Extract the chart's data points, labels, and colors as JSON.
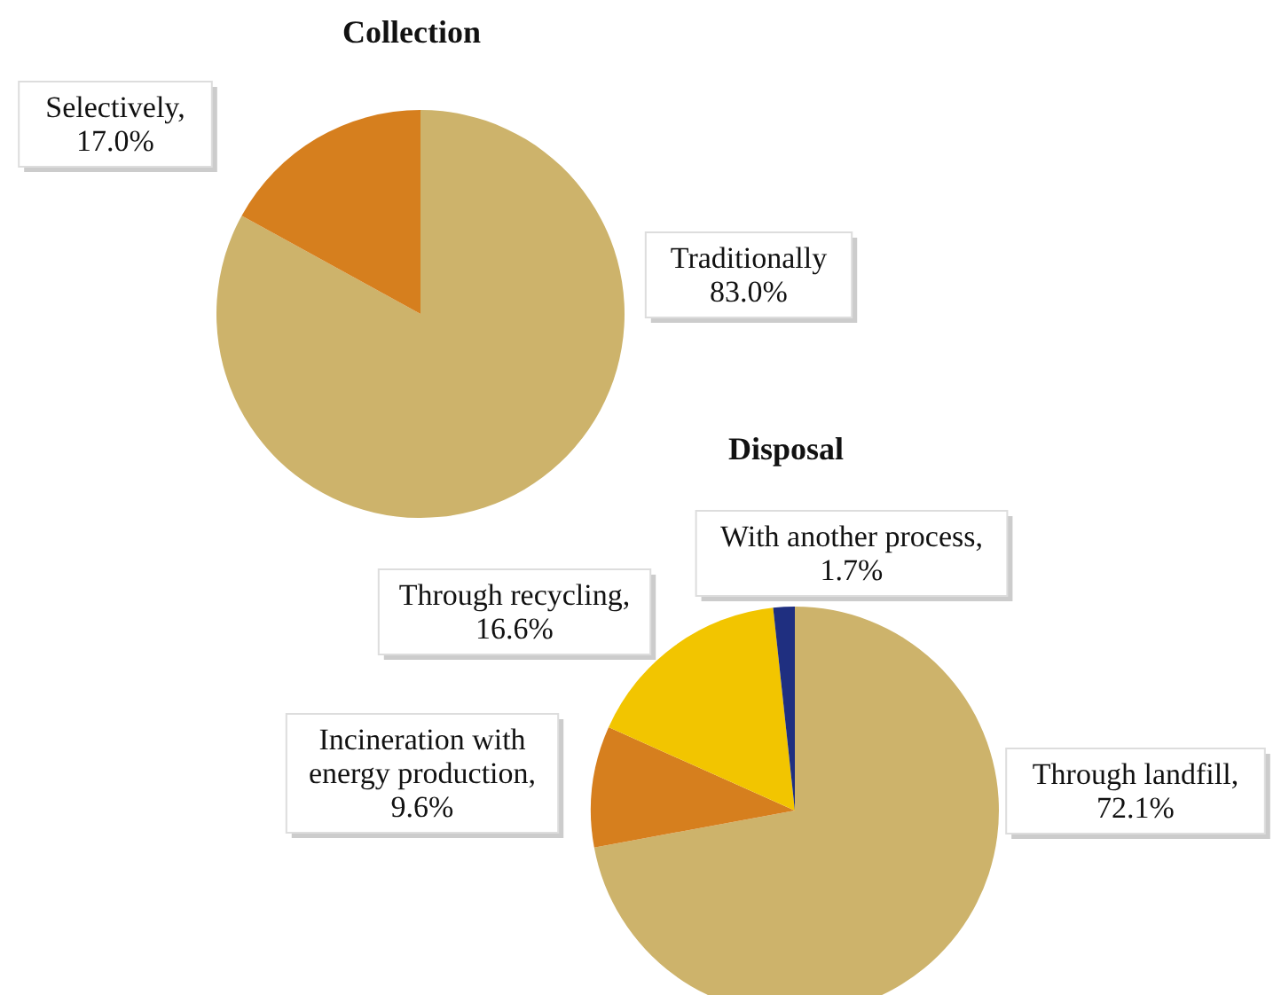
{
  "chart_data": [
    {
      "type": "pie",
      "title": "Collection",
      "categories": [
        "Traditionally",
        "Selectively"
      ],
      "values": [
        83.0,
        17.0
      ],
      "value_labels": [
        "83.0%",
        ", 17.0%"
      ],
      "colors": [
        "#cdb36b",
        "#d67f1e"
      ]
    },
    {
      "type": "pie",
      "title": "Disposal",
      "categories": [
        "Through landfill",
        "Incineration with energy production",
        "Through recycling",
        "With another process"
      ],
      "values": [
        72.1,
        9.6,
        16.6,
        1.7
      ],
      "value_labels": [
        ", 72.1%",
        ", 9.6%",
        ", 16.6%",
        ", 1.7%"
      ],
      "colors": [
        "#cdb36b",
        "#d67f1e",
        "#f2c500",
        "#1f2f80"
      ]
    }
  ]
}
